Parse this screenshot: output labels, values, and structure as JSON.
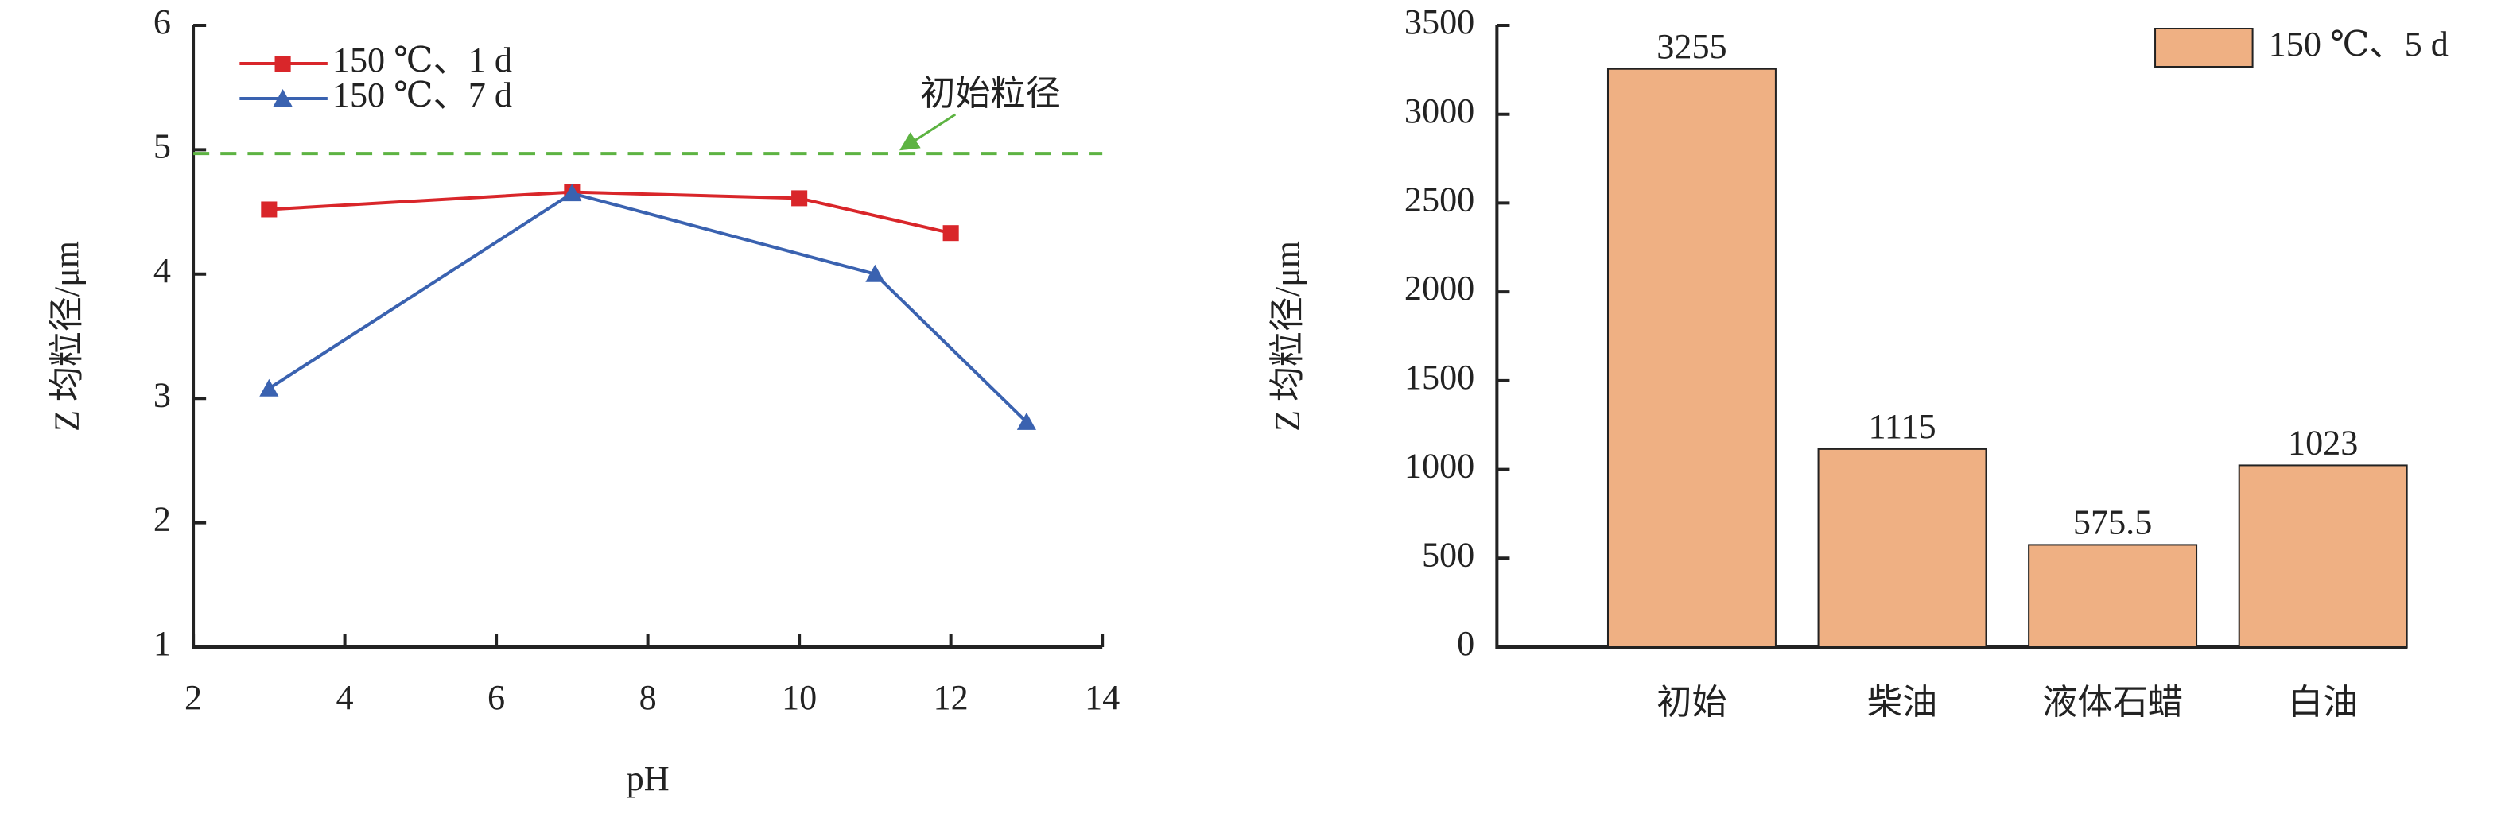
{
  "chart_data": [
    {
      "type": "line",
      "xlabel": "pH",
      "ylabel": "Z 均粒径/μm",
      "xlim": [
        2,
        14
      ],
      "xticks": [
        2,
        4,
        6,
        8,
        10,
        12,
        14
      ],
      "ylim": [
        1,
        6
      ],
      "yticks": [
        1,
        2,
        3,
        4,
        5,
        6
      ],
      "legend": "upper left",
      "series": [
        {
          "name": "150 ℃、1 d",
          "color": "#d9262a",
          "marker": "square",
          "x": [
            3,
            7,
            10,
            12
          ],
          "values": [
            4.52,
            4.66,
            4.61,
            4.33
          ]
        },
        {
          "name": "150 ℃、7 d",
          "color": "#3a62b0",
          "marker": "triangle",
          "x": [
            3,
            7,
            11,
            13
          ],
          "values": [
            3.08,
            4.65,
            4.0,
            2.81
          ]
        }
      ],
      "reference_line": {
        "value": 4.97,
        "label": "初始粒径",
        "color": "#5db342"
      }
    },
    {
      "type": "bar",
      "ylabel": "Z 均粒径/μm",
      "categories": [
        "初始",
        "柴油",
        "液体石蜡",
        "白油"
      ],
      "ylim": [
        0,
        3500
      ],
      "yticks": [
        0,
        500,
        1000,
        1500,
        2000,
        2500,
        3000,
        3500
      ],
      "legend": "upper right",
      "series": [
        {
          "name": "150 ℃、5 d",
          "color": "#efb083",
          "values": [
            3255,
            1115,
            575.5,
            1023
          ]
        }
      ]
    }
  ]
}
